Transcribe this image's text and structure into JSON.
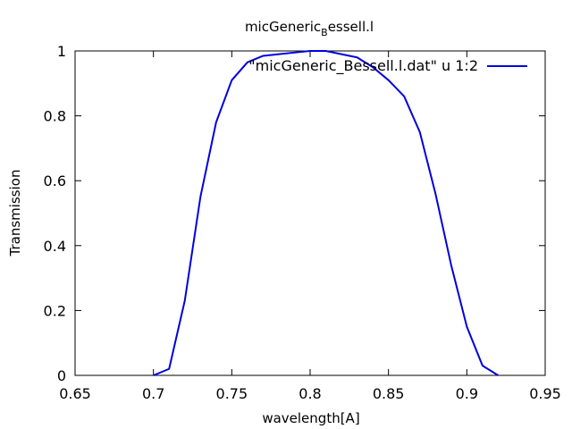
{
  "chart_data": {
    "type": "line",
    "title": "micGeneric",
    "title_subscript": "B",
    "title_suffix": "essell.l",
    "xlabel": "wavelength[A]",
    "ylabel": "Transmission",
    "xlim": [
      0.65,
      0.95
    ],
    "ylim": [
      0,
      1
    ],
    "xticks": [
      0.65,
      0.7,
      0.75,
      0.8,
      0.85,
      0.9,
      0.95
    ],
    "xtick_labels": [
      "0.65",
      "0.7",
      "0.75",
      "0.8",
      "0.85",
      "0.9",
      "0.95"
    ],
    "yticks": [
      0,
      0.2,
      0.4,
      0.6,
      0.8,
      1
    ],
    "ytick_labels": [
      "0",
      "0.2",
      "0.4",
      "0.6",
      "0.8",
      "1"
    ],
    "grid": false,
    "legend_position": "top-right",
    "series": [
      {
        "name": "\"micGeneric_Bessell.l.dat\" u 1:2",
        "color": "#0000dd",
        "x": [
          0.7,
          0.71,
          0.72,
          0.73,
          0.74,
          0.75,
          0.76,
          0.77,
          0.78,
          0.79,
          0.8,
          0.81,
          0.82,
          0.83,
          0.84,
          0.85,
          0.86,
          0.87,
          0.88,
          0.89,
          0.9,
          0.91,
          0.92
        ],
        "y": [
          0.0,
          0.02,
          0.23,
          0.55,
          0.78,
          0.91,
          0.965,
          0.985,
          0.99,
          0.995,
          1.0,
          1.0,
          0.99,
          0.98,
          0.95,
          0.91,
          0.86,
          0.75,
          0.56,
          0.34,
          0.15,
          0.03,
          0.0
        ]
      }
    ]
  }
}
